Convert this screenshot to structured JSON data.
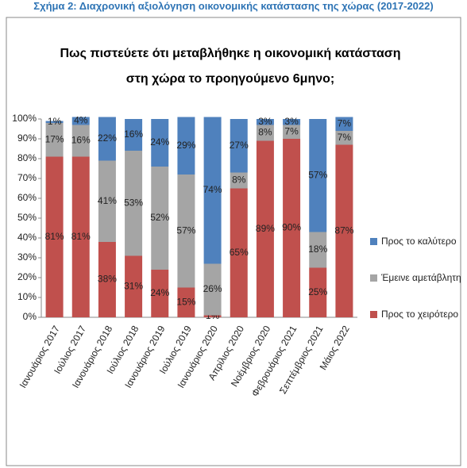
{
  "figure_title": "Σχήμα 2: Διαχρονική αξιολόγηση οικονομικής κατάστασης της χώρας (2017-2022)",
  "chart_data": {
    "type": "stacked_bar",
    "title": "Πως πιστεύετε ότι μεταβλήθηκε η οικονομική κατάσταση στη χώρα το προηγούμενο 6μηνο;",
    "categories": [
      "Ιανουάριος 2017",
      "Ιούλιος 2017",
      "Ιανουάριος 2018",
      "Ιούλιος 2018",
      "Ιανουάριος 2019",
      "Ιούλιος 2019",
      "Ιανουάριος 2020",
      "Απρίλιος 2020",
      "Νοέμβριος 2020",
      "Φεβρουάριος 2021",
      "Σεπτέμβριος 2021",
      "Μάιος 2022"
    ],
    "series": [
      {
        "name": "Προς το χειρότερο",
        "color": "#c0504d",
        "values": [
          81,
          81,
          38,
          31,
          24,
          15,
          1,
          65,
          89,
          90,
          25,
          87
        ],
        "value_labels": [
          "81%",
          "81%",
          "38%",
          "31%",
          "24%",
          "15%",
          "1%",
          "65%",
          "89%",
          "90%",
          "25%",
          "87%"
        ]
      },
      {
        "name": "Έμεινε αμετάβλητη",
        "color": "#a5a5a5",
        "values": [
          17,
          16,
          41,
          53,
          52,
          57,
          26,
          8,
          8,
          7,
          18,
          7
        ],
        "value_labels": [
          "17%",
          "16%",
          "41%",
          "53%",
          "52%",
          "57%",
          "26%",
          "8%",
          "8%",
          "7%",
          "18%",
          "7%"
        ]
      },
      {
        "name": "Προς το καλύτερο",
        "color": "#4f81bd",
        "values": [
          1,
          4,
          22,
          16,
          24,
          29,
          74,
          27,
          3,
          3,
          57,
          7
        ],
        "value_labels": [
          "1%",
          "4%",
          "22%",
          "16%",
          "24%",
          "29%",
          "74%",
          "27%",
          "3%",
          "3%",
          "57%",
          "7%"
        ]
      }
    ],
    "ylim": [
      0,
      100
    ],
    "yticks": [
      {
        "value": 0,
        "label": "0%"
      },
      {
        "value": 10,
        "label": "10%"
      },
      {
        "value": 20,
        "label": "20%"
      },
      {
        "value": 30,
        "label": "30%"
      },
      {
        "value": 40,
        "label": "40%"
      },
      {
        "value": 50,
        "label": "50%"
      },
      {
        "value": 60,
        "label": "60%"
      },
      {
        "value": 70,
        "label": "70%"
      },
      {
        "value": 80,
        "label": "80%"
      },
      {
        "value": 90,
        "label": "90%"
      },
      {
        "value": 100,
        "label": "100%"
      }
    ],
    "legend": "right"
  }
}
